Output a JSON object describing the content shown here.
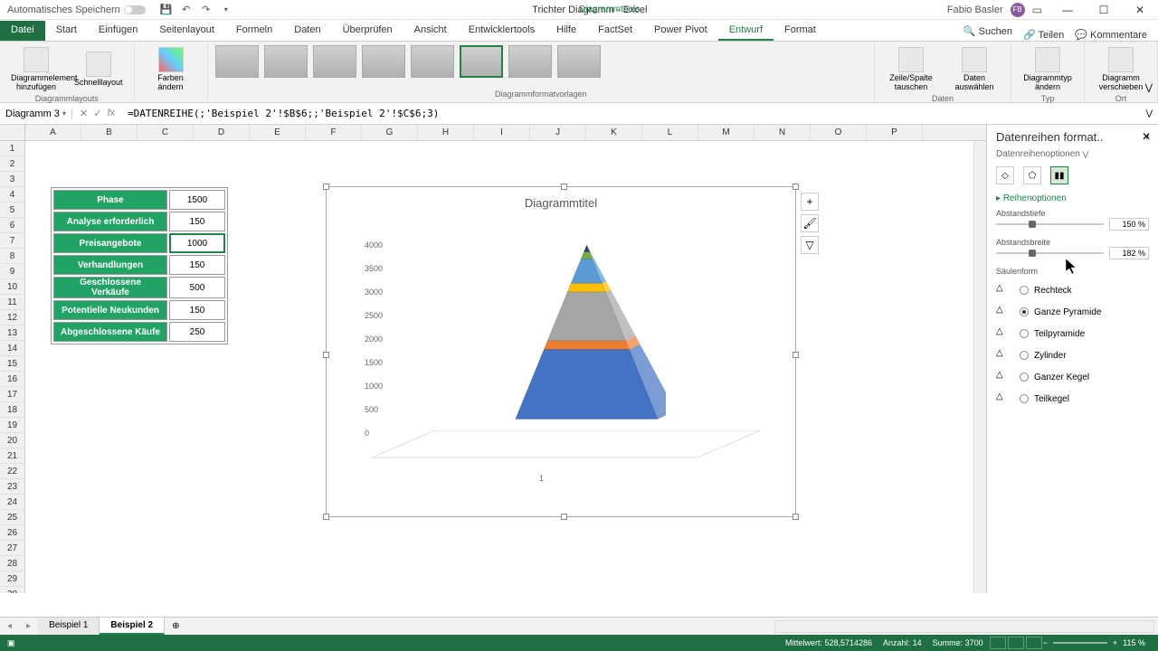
{
  "titlebar": {
    "autosave": "Automatisches Speichern",
    "filename": "Trichter Diagramm - Excel",
    "tooltab": "Diagrammtools",
    "user": "Fabio Basler",
    "user_initials": "FB"
  },
  "ribbon_tabs": {
    "file": "Datei",
    "tabs": [
      "Start",
      "Einfügen",
      "Seitenlayout",
      "Formeln",
      "Daten",
      "Überprüfen",
      "Ansicht",
      "Entwicklertools",
      "Hilfe",
      "FactSet",
      "Power Pivot",
      "Entwurf",
      "Format"
    ],
    "active": "Entwurf",
    "search": "Suchen",
    "share": "Teilen",
    "comments": "Kommentare"
  },
  "ribbon": {
    "g1": {
      "btn1": "Diagrammelement hinzufügen",
      "btn2": "Schnelllayout",
      "label": "Diagrammlayouts"
    },
    "g2": {
      "btn": "Farben ändern"
    },
    "g3": {
      "label": "Diagrammformatvorlagen"
    },
    "g4": {
      "btn1": "Zeile/Spalte tauschen",
      "btn2": "Daten auswählen",
      "label": "Daten"
    },
    "g5": {
      "btn": "Diagrammtyp ändern",
      "label": "Typ"
    },
    "g6": {
      "btn": "Diagramm verschieben",
      "label": "Ort"
    }
  },
  "namebox": "Diagramm 3",
  "formula": "=DATENREIHE(;'Beispiel 2'!$B$6;;'Beispiel 2'!$C$6;3)",
  "columns": [
    "A",
    "B",
    "C",
    "D",
    "E",
    "F",
    "G",
    "H",
    "I",
    "J",
    "K",
    "L",
    "M",
    "N",
    "O",
    "P"
  ],
  "table": {
    "rows": [
      {
        "phase": "Phase",
        "val": "1500"
      },
      {
        "phase": "Analyse erforderlich",
        "val": "150"
      },
      {
        "phase": "Preisangebote",
        "val": "1000"
      },
      {
        "phase": "Verhandlungen",
        "val": "150"
      },
      {
        "phase": "Geschlossene Verkäufe",
        "val": "500"
      },
      {
        "phase": "Potentielle Neukunden",
        "val": "150"
      },
      {
        "phase": "Abgeschlossene Käufe",
        "val": "250"
      }
    ],
    "selected_row": 2,
    "phase_bg": "#21a366",
    "phase_fg": "#ffffff"
  },
  "chart": {
    "title": "Diagrammtitel",
    "y_ticks": [
      "4000",
      "3500",
      "3000",
      "2500",
      "2000",
      "1500",
      "1000",
      "500",
      "0"
    ],
    "x_tick": "1",
    "pyramid": {
      "segments": [
        {
          "color": "#4472c4",
          "frac": 0.4
        },
        {
          "color": "#ed7d31",
          "frac": 0.05
        },
        {
          "color": "#a5a5a5",
          "frac": 0.28
        },
        {
          "color": "#ffc000",
          "frac": 0.05
        },
        {
          "color": "#5b9bd5",
          "frac": 0.14
        },
        {
          "color": "#70ad47",
          "frac": 0.04
        },
        {
          "color": "#264478",
          "frac": 0.04
        }
      ]
    }
  },
  "format_panel": {
    "title": "Datenreihen format..",
    "subtitle": "Datenreihenoptionen",
    "section": "Reihenoptionen",
    "gap_depth": {
      "label": "Abstandstiefe",
      "value": "150 %"
    },
    "gap_width": {
      "label": "Abstandsbreite",
      "value": "182 %"
    },
    "shape_label": "Säulenform",
    "shapes": [
      {
        "label": "Rechteck",
        "on": false
      },
      {
        "label": "Ganze Pyramide",
        "on": true
      },
      {
        "label": "Teilpyramide",
        "on": false
      },
      {
        "label": "Zylinder",
        "on": false
      },
      {
        "label": "Ganzer Kegel",
        "on": false
      },
      {
        "label": "Teilkegel",
        "on": false
      }
    ]
  },
  "sheets": {
    "tabs": [
      "Beispiel 1",
      "Beispiel 2"
    ],
    "active": 1
  },
  "status": {
    "avg": "Mittelwert: 528,5714286",
    "count": "Anzahl: 14",
    "sum": "Summe: 3700",
    "zoom": "115 %"
  }
}
